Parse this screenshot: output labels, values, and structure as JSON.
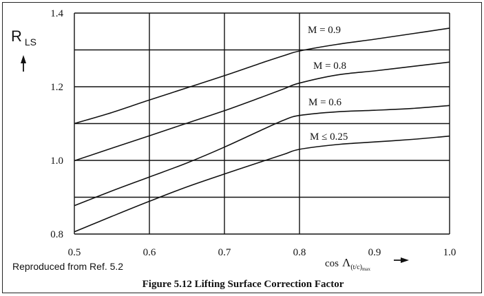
{
  "chart_data": {
    "type": "line",
    "title": "",
    "caption": "Figure 5.12 Lifting Surface Correction Factor",
    "source_note": "Reproduced from Ref. 5.2",
    "ylabel": {
      "main": "R",
      "sub": "LS"
    },
    "xlabel": {
      "prefix": "cos",
      "symbol": "Λ",
      "sub": "(t/c)",
      "subsub": "max"
    },
    "xlim": [
      0.5,
      1.0
    ],
    "ylim": [
      0.8,
      1.4
    ],
    "x_ticks": [
      "0.5",
      "0.6",
      "0.7",
      "0.8",
      "0.9",
      "1.0"
    ],
    "y_ticks": [
      "0.8",
      "1.0",
      "1.2",
      "1.4"
    ],
    "x_gridlines": [
      0.5,
      0.6,
      0.7,
      0.8,
      1.0
    ],
    "y_gridlines": [
      0.8,
      0.9,
      1.0,
      1.1,
      1.2,
      1.3,
      1.4
    ],
    "grid": true,
    "series": [
      {
        "name": "M = 0.9",
        "x": [
          0.5,
          0.55,
          0.6,
          0.65,
          0.7,
          0.75,
          0.78,
          0.8,
          0.85,
          0.9,
          0.95,
          1.0
        ],
        "y": [
          1.1,
          1.13,
          1.164,
          1.197,
          1.23,
          1.265,
          1.285,
          1.297,
          1.315,
          1.329,
          1.344,
          1.359
        ]
      },
      {
        "name": "M = 0.8",
        "x": [
          0.5,
          0.55,
          0.6,
          0.65,
          0.7,
          0.75,
          0.78,
          0.8,
          0.85,
          0.9,
          0.95,
          1.0
        ],
        "y": [
          0.999,
          1.033,
          1.067,
          1.101,
          1.135,
          1.172,
          1.195,
          1.21,
          1.232,
          1.243,
          1.255,
          1.267
        ]
      },
      {
        "name": "M = 0.6",
        "x": [
          0.5,
          0.55,
          0.6,
          0.65,
          0.7,
          0.75,
          0.78,
          0.8,
          0.85,
          0.9,
          0.95,
          1.0
        ],
        "y": [
          0.877,
          0.917,
          0.955,
          0.993,
          1.036,
          1.083,
          1.11,
          1.122,
          1.132,
          1.136,
          1.141,
          1.149
        ]
      },
      {
        "name": "M  ≤  0.25",
        "x": [
          0.5,
          0.55,
          0.6,
          0.65,
          0.7,
          0.75,
          0.78,
          0.8,
          0.85,
          0.9,
          0.95,
          1.0
        ],
        "y": [
          0.806,
          0.848,
          0.889,
          0.928,
          0.963,
          0.997,
          1.017,
          1.03,
          1.043,
          1.05,
          1.057,
          1.066
        ]
      }
    ]
  }
}
